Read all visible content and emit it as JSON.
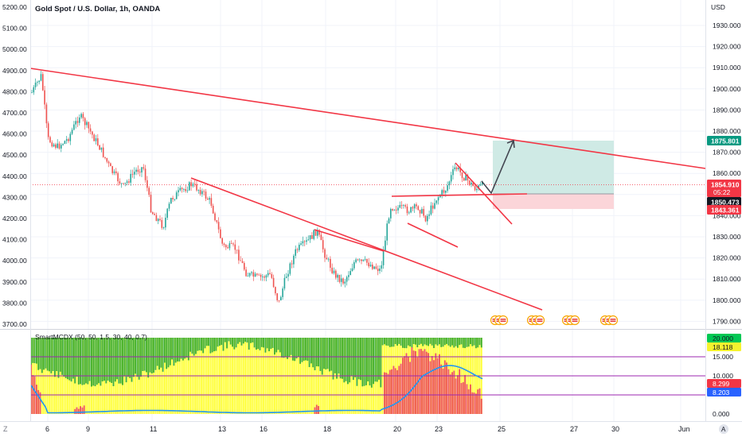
{
  "title": "Gold Spot / U.S. Dollar, 1h, OANDA",
  "currency": "USD",
  "left_axis_labels": [
    "5200.00",
    "5100.00",
    "5000.00",
    "4900.00",
    "4800.00",
    "4700.00",
    "4600.00",
    "4500.00",
    "4400.00",
    "4300.00",
    "4200.00",
    "4100.00",
    "4000.00",
    "3900.00",
    "3800.00",
    "3700.00"
  ],
  "right_axis_labels": [
    "1930.000",
    "1920.000",
    "1910.000",
    "1900.000",
    "1890.000",
    "1880.000",
    "1870.000",
    "1860.000",
    "1850.000",
    "1840.000",
    "1830.000",
    "1820.000",
    "1810.000",
    "1800.000",
    "1790.000"
  ],
  "price_tags": {
    "target": "1875.801",
    "current": "1854.910",
    "countdown": "05:22",
    "entry": "1850.473",
    "stop": "1843.361"
  },
  "indicator": {
    "label": "SmartMCDX (50, 50, 1.5, 30, 40, 0.7)",
    "axis_labels": [
      "15.000",
      "10.000",
      "0.000"
    ],
    "tags": [
      "20.000",
      "18.118",
      "8.299",
      "8.203"
    ]
  },
  "x_axis_labels": [
    "6",
    "9",
    "11",
    "13",
    "16",
    "18",
    "20",
    "23",
    "25",
    "27",
    "30",
    "Jun"
  ],
  "x_axis_settings": "Z",
  "x_axis_auto": "A",
  "colors": {
    "up": "#26a69a",
    "down": "#ef5350",
    "trendline": "#f23645",
    "arrow": "#434651",
    "target_zone": "#cfeae5",
    "stop_zone": "#fbd5d9",
    "green_bars": "#3cad2a",
    "yellow_bars": "#ffff33",
    "red_bars": "#ef5350",
    "blue_line": "#2196f3",
    "tag_green": "#089981",
    "tag_red": "#f23645",
    "tag_dark": "#131722",
    "tag_blue": "#2962ff",
    "tag_yellow": "#f6f22e",
    "tag_lime": "#00e676",
    "purple_line": "#9c27b0"
  },
  "events": [
    "flag-event-icon",
    "flag-event-icon",
    "flag-event-icon",
    "flag-event-icon"
  ]
}
